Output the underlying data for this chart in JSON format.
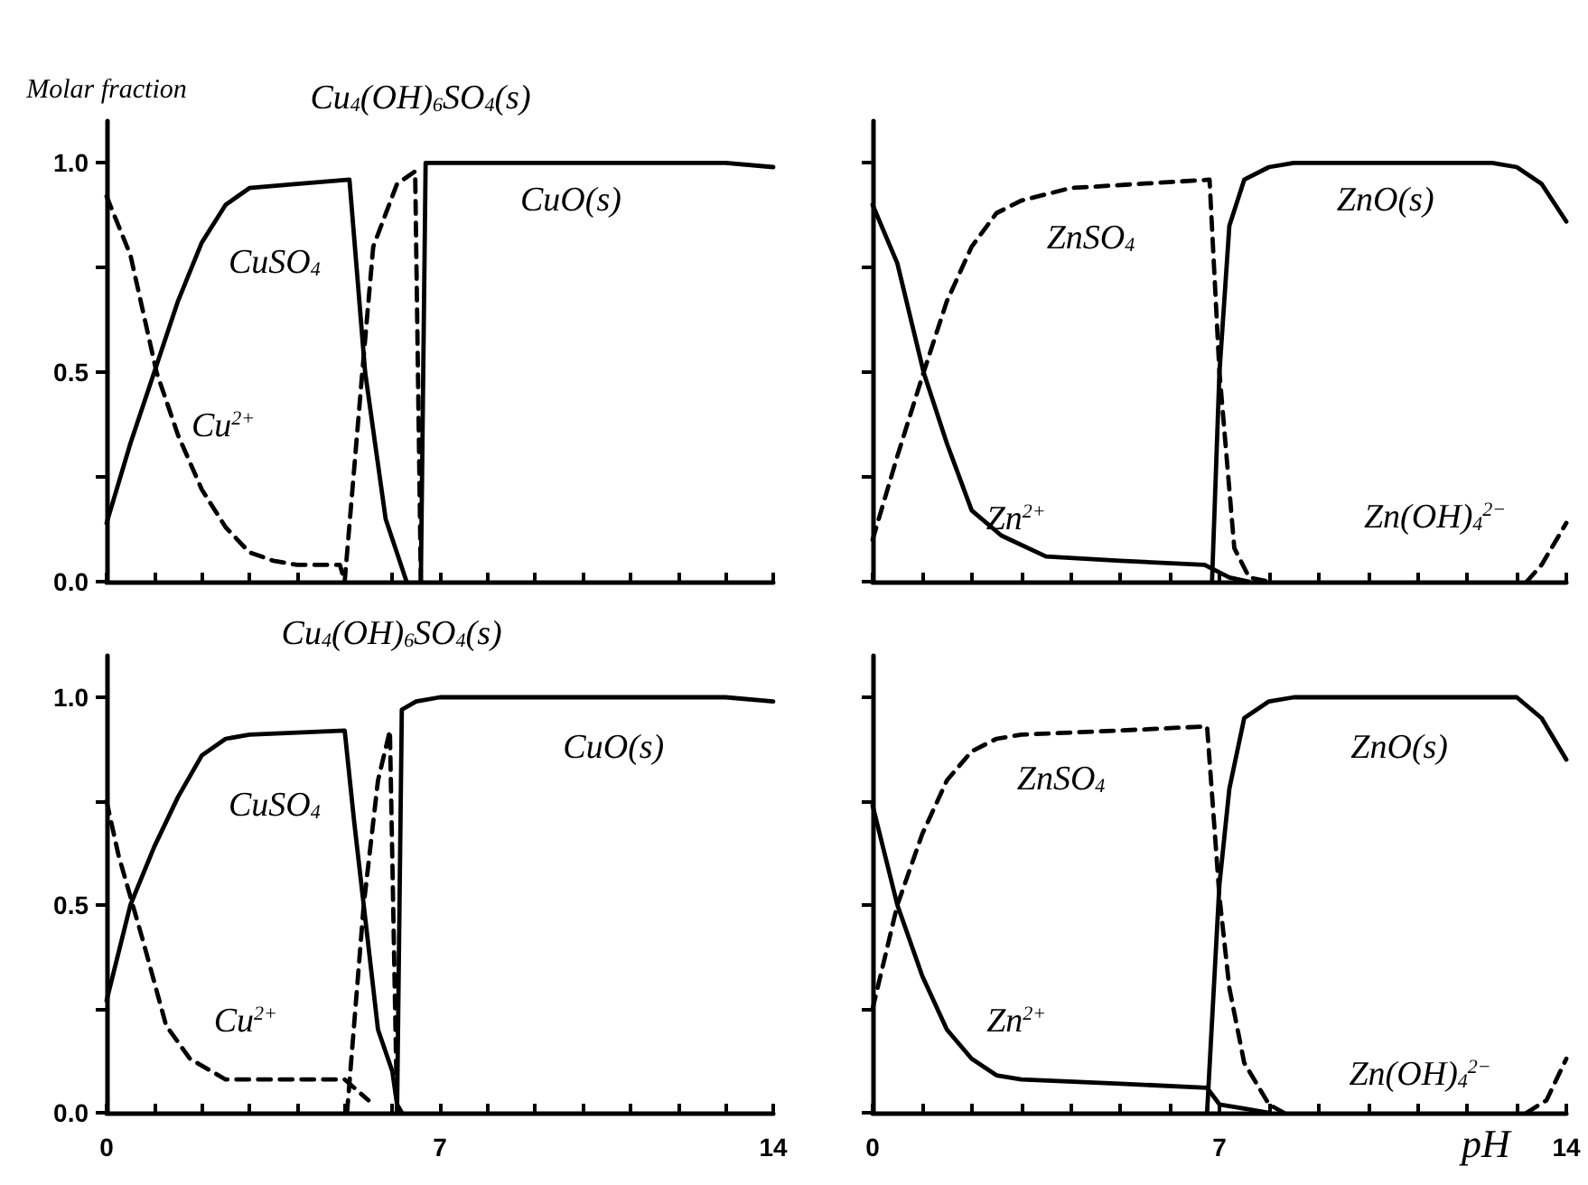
{
  "chart_data": [
    {
      "type": "line",
      "ylabel": "Molar fraction",
      "xlim": [
        0,
        14
      ],
      "ylim": [
        0,
        1.1
      ],
      "marker": "none",
      "tick_labels": "y",
      "xticks": [
        {
          "value": 0,
          "label": null
        },
        {
          "value": 1,
          "label": null
        },
        {
          "value": 2,
          "label": null
        },
        {
          "value": 3,
          "label": null
        },
        {
          "value": 4,
          "label": null
        },
        {
          "value": 5,
          "label": null
        },
        {
          "value": 6,
          "label": null
        },
        {
          "value": 7,
          "label": null
        },
        {
          "value": 8,
          "label": null
        },
        {
          "value": 9,
          "label": null
        },
        {
          "value": 10,
          "label": null
        },
        {
          "value": 11,
          "label": null
        },
        {
          "value": 12,
          "label": null
        },
        {
          "value": 13,
          "label": null
        },
        {
          "value": 14,
          "label": null
        }
      ],
      "yticks": [
        {
          "value": 0,
          "label": "0.0"
        },
        {
          "value": 0.25,
          "label": null
        },
        0.5,
        {
          "value": 0.75,
          "label": null
        },
        {
          "value": 1,
          "label": "1.0"
        }
      ],
      "series": [
        {
          "color": "#000000",
          "line_style": "solid",
          "x": [
            0,
            0.5,
            1,
            1.5,
            2,
            2.5,
            3,
            4,
            5.1,
            5.43,
            5.86,
            6.3
          ],
          "values": [
            0.14,
            0.33,
            0.5,
            0.67,
            0.81,
            0.9,
            0.94,
            0.95,
            0.96,
            0.5,
            0.15,
            0
          ]
        },
        {
          "color": "#000000",
          "line_style": "dashed",
          "x": [
            0,
            0.5,
            1.05,
            1.5,
            2,
            2.5,
            3,
            3.5,
            4,
            4.9,
            5.0
          ],
          "values": [
            0.92,
            0.78,
            0.5,
            0.35,
            0.22,
            0.13,
            0.07,
            0.05,
            0.04,
            0.04,
            0
          ]
        },
        {
          "color": "#000000",
          "line_style": "dashed",
          "x": [
            5.0,
            5.37,
            5.6,
            6.1,
            6.48,
            6.6
          ],
          "values": [
            0,
            0.5,
            0.8,
            0.95,
            0.98,
            0
          ]
        },
        {
          "color": "#000000",
          "line_style": "solid",
          "x": [
            6.6,
            6.7,
            13,
            14
          ],
          "values": [
            0,
            1,
            1,
            0.99
          ]
        }
      ],
      "annotations": [
        {
          "text": "CuSO$_{4}$",
          "x": 2.5,
          "y": 0.9
        },
        {
          "text": "Cu$^{2+}$",
          "x": 1.5,
          "y": 0.35
        },
        {
          "text": "Cu$_{4}$(OH)$_{6}$SO$_{4}$(s)",
          "x": 6.1,
          "y": 0.95
        },
        {
          "text": "CuO(s)",
          "x": 9.75,
          "y": 1
        }
      ]
    },
    {
      "type": "line",
      "xlim": [
        0,
        14
      ],
      "ylim": [
        0,
        1.1
      ],
      "marker": "none",
      "tick_labels": false,
      "xticks": [
        {
          "value": 0,
          "label": null
        },
        {
          "value": 1,
          "label": null
        },
        {
          "value": 2,
          "label": null
        },
        {
          "value": 3,
          "label": null
        },
        {
          "value": 4,
          "label": null
        },
        {
          "value": 5,
          "label": null
        },
        {
          "value": 6,
          "label": null
        },
        {
          "value": 7,
          "label": null
        },
        {
          "value": 8,
          "label": null
        },
        {
          "value": 9,
          "label": null
        },
        {
          "value": 10,
          "label": null
        },
        {
          "value": 11,
          "label": null
        },
        {
          "value": 12,
          "label": null
        },
        {
          "value": 13,
          "label": null
        },
        {
          "value": 14,
          "label": null
        }
      ],
      "yticks": [
        {
          "value": 0,
          "label": null
        },
        {
          "value": 0.25,
          "label": null
        },
        {
          "value": 0.5,
          "label": null
        },
        {
          "value": 0.75,
          "label": null
        },
        {
          "value": 1,
          "label": null
        }
      ],
      "series": [
        {
          "color": "#000000",
          "line_style": "solid",
          "x": [
            0,
            0.5,
            1.03,
            1.5,
            2,
            2.6,
            3.5,
            5,
            6.7,
            7.2,
            7.6
          ],
          "values": [
            0.9,
            0.76,
            0.5,
            0.33,
            0.17,
            0.11,
            0.06,
            0.05,
            0.04,
            0.01,
            0
          ]
        },
        {
          "color": "#000000",
          "line_style": "dashed",
          "x": [
            0,
            0.5,
            1.03,
            1.5,
            2,
            2.5,
            3,
            4,
            6.8,
            7,
            7.3,
            7.6,
            8
          ],
          "values": [
            0.1,
            0.3,
            0.5,
            0.67,
            0.8,
            0.88,
            0.91,
            0.94,
            0.96,
            0.5,
            0.08,
            0.01,
            0
          ]
        },
        {
          "color": "#000000",
          "line_style": "solid",
          "x": [
            6.85,
            7,
            7.2,
            7.5,
            8,
            8.5,
            12.5,
            13,
            13.5,
            14
          ],
          "values": [
            0,
            0.5,
            0.85,
            0.96,
            0.99,
            1,
            1,
            0.99,
            0.95,
            0.86
          ]
        },
        {
          "color": "#000000",
          "line_style": "dashed",
          "x": [
            13.2,
            13.5,
            14
          ],
          "values": [
            0,
            0.04,
            0.14
          ]
        }
      ],
      "annotations": [
        {
          "text": "ZnSO$_{4}$",
          "x": 4,
          "y": 0.94
        },
        {
          "text": "Zn$^{2+}$",
          "x": 2.6,
          "y": 0.11
        },
        {
          "text": "ZnO(s)",
          "x": 12.5,
          "y": 1
        },
        {
          "text": "Zn(OH)$_{4}$$^{2−}$",
          "x": 13.5,
          "y": 0.04
        }
      ]
    },
    {
      "type": "line",
      "xlim": [
        0,
        14
      ],
      "ylim": [
        0,
        1.1
      ],
      "marker": "none",
      "xticks": [
        0,
        {
          "value": 1,
          "label": null
        },
        {
          "value": 2,
          "label": null
        },
        {
          "value": 3,
          "label": null
        },
        {
          "value": 4,
          "label": null
        },
        {
          "value": 5,
          "label": null
        },
        {
          "value": 6,
          "label": null
        },
        7,
        {
          "value": 8,
          "label": null
        },
        {
          "value": 9,
          "label": null
        },
        {
          "value": 10,
          "label": null
        },
        {
          "value": 11,
          "label": null
        },
        {
          "value": 12,
          "label": null
        },
        {
          "value": 13,
          "label": null
        },
        14
      ],
      "yticks": [
        {
          "value": 0,
          "label": "0.0"
        },
        {
          "value": 0.25,
          "label": null
        },
        0.5,
        {
          "value": 0.75,
          "label": null
        },
        {
          "value": 1,
          "label": "1.0"
        }
      ],
      "series": [
        {
          "color": "#000000",
          "line_style": "solid",
          "x": [
            0,
            0.5,
            1,
            1.5,
            2,
            2.5,
            3,
            5,
            5.2,
            5.4,
            5.7,
            6,
            6.1,
            6.2
          ],
          "values": [
            0.27,
            0.5,
            0.64,
            0.76,
            0.86,
            0.9,
            0.91,
            0.92,
            0.7,
            0.5,
            0.2,
            0.1,
            0.02,
            0
          ]
        },
        {
          "color": "#000000",
          "line_style": "dashed",
          "x": [
            0,
            0.25,
            0.75,
            1.25,
            1.75,
            2.5,
            3.5,
            5,
            5.5
          ],
          "values": [
            0.75,
            0.62,
            0.42,
            0.21,
            0.13,
            0.08,
            0.08,
            0.08,
            0.03
          ]
        },
        {
          "color": "#000000",
          "line_style": "dashed",
          "x": [
            5.05,
            5.4,
            5.7,
            5.95,
            6.1
          ],
          "values": [
            0,
            0.5,
            0.8,
            0.92,
            0
          ]
        },
        {
          "color": "#000000",
          "line_style": "solid",
          "x": [
            6.1,
            6.2,
            6.5,
            7,
            13,
            14
          ],
          "values": [
            0,
            0.97,
            0.99,
            1,
            1,
            0.99
          ]
        }
      ],
      "annotations": [
        {
          "text": "CuSO$_{4}$",
          "x": 2.5,
          "y": 0.9
        },
        {
          "text": "Cu$^{2+}$",
          "x": 2.5,
          "y": 0.08
        },
        {
          "text": "Cu$_{4}$(OH)$_{6}$SO$_{4}$(s)",
          "x": 5.95,
          "y": 0.92
        },
        {
          "text": "CuO(s)",
          "x": 13,
          "y": 1
        }
      ]
    },
    {
      "type": "line",
      "xlabel": "pH",
      "xlim": [
        0,
        14
      ],
      "ylim": [
        0,
        1.1
      ],
      "marker": "none",
      "tick_labels": "x",
      "xticks": [
        0,
        {
          "value": 1,
          "label": null
        },
        {
          "value": 2,
          "label": null
        },
        {
          "value": 3,
          "label": null
        },
        {
          "value": 4,
          "label": null
        },
        {
          "value": 5,
          "label": null
        },
        {
          "value": 6,
          "label": null
        },
        7,
        {
          "value": 8,
          "label": null
        },
        {
          "value": 9,
          "label": null
        },
        {
          "value": 10,
          "label": null
        },
        {
          "value": 11,
          "label": null
        },
        {
          "value": 12,
          "label": null
        },
        {
          "value": 13,
          "label": null
        },
        14
      ],
      "yticks": [
        {
          "value": 0,
          "label": null
        },
        {
          "value": 0.25,
          "label": null
        },
        {
          "value": 0.5,
          "label": null
        },
        {
          "value": 0.75,
          "label": null
        },
        {
          "value": 1,
          "label": null
        }
      ],
      "series": [
        {
          "color": "#000000",
          "line_style": "solid",
          "x": [
            0,
            0.5,
            1,
            1.5,
            2,
            2.5,
            3,
            5,
            6.75,
            7,
            7.5,
            8
          ],
          "values": [
            0.74,
            0.5,
            0.33,
            0.2,
            0.13,
            0.09,
            0.08,
            0.07,
            0.06,
            0.02,
            0.01,
            0
          ]
        },
        {
          "color": "#000000",
          "line_style": "dashed",
          "x": [
            0,
            0.5,
            1,
            1.5,
            2,
            2.5,
            3,
            5,
            6.75,
            7,
            7.2,
            7.5,
            8,
            8.3
          ],
          "values": [
            0.25,
            0.5,
            0.67,
            0.8,
            0.87,
            0.9,
            0.91,
            0.92,
            0.93,
            0.52,
            0.3,
            0.12,
            0.02,
            0
          ]
        },
        {
          "color": "#000000",
          "line_style": "solid",
          "x": [
            6.75,
            7,
            7.2,
            7.5,
            8,
            8.5,
            13,
            13.5,
            14
          ],
          "values": [
            0,
            0.55,
            0.78,
            0.95,
            0.99,
            1,
            1,
            0.95,
            0.85
          ]
        },
        {
          "color": "#000000",
          "line_style": "dashed",
          "x": [
            13.2,
            13.6,
            14
          ],
          "values": [
            0,
            0.03,
            0.13
          ]
        }
      ],
      "annotations": [
        {
          "text": "ZnSO$_{4}$",
          "x": 3,
          "y": 0.91
        },
        {
          "text": "Zn$^{2+}$",
          "x": 2.5,
          "y": 0.09
        },
        {
          "text": "ZnO(s)",
          "x": 13,
          "y": 1
        },
        {
          "text": "Zn(OH)$_{4}$$^{2−}$",
          "x": 13.6,
          "y": 0.03
        }
      ]
    }
  ]
}
